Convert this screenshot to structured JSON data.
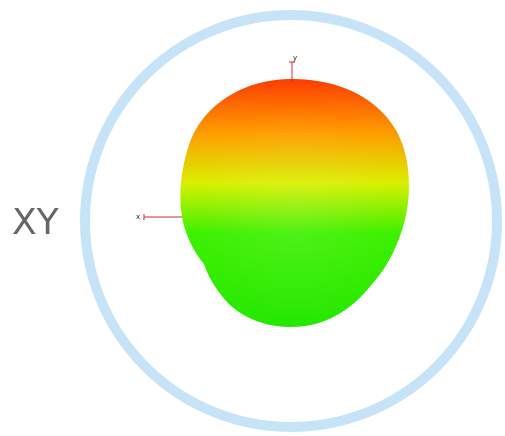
{
  "plane_label": "XY",
  "axes": {
    "x_label": "x",
    "y_label": "y"
  },
  "colors": {
    "ring": "#c7e3f7",
    "axis_line": "#d22b2b",
    "pattern_top": "#ff3c00",
    "pattern_upper": "#ff9e00",
    "pattern_mid": "#d9f000",
    "pattern_lower": "#3ef000",
    "pattern_bottom": "#24e800"
  }
}
